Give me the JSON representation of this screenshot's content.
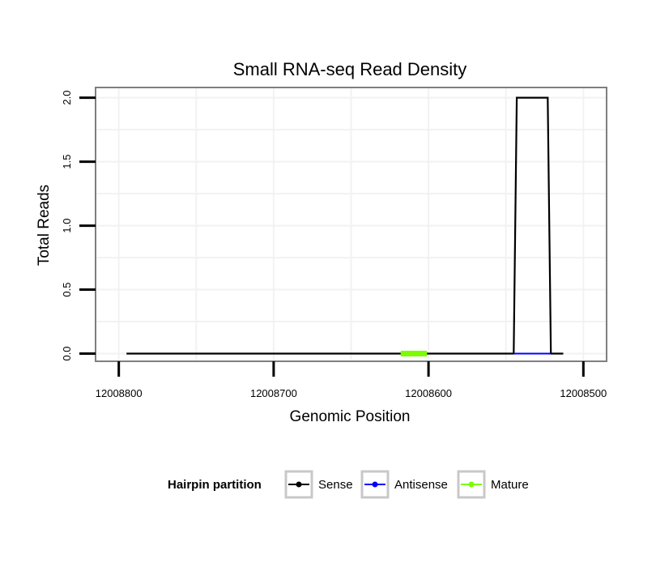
{
  "chart_data": {
    "type": "line",
    "title": "Small RNA-seq Read Density",
    "xlabel": "Genomic Position",
    "ylabel": "Total Reads",
    "xlim": [
      12008815,
      12008485
    ],
    "x_reversed": true,
    "ylim": [
      -0.06,
      2.08
    ],
    "x_ticks": [
      12008800,
      12008700,
      12008600,
      12008500
    ],
    "x_tick_labels": [
      "12008800",
      "12008700",
      "12008600",
      "12008500"
    ],
    "y_ticks": [
      0.0,
      0.5,
      1.0,
      1.5,
      2.0
    ],
    "y_tick_labels": [
      "0.0",
      "0.5",
      "1.0",
      "1.5",
      "2.0"
    ],
    "grid": true,
    "legend": {
      "title": "Hairpin partition",
      "position": "bottom",
      "entries": [
        "Sense",
        "Antisense",
        "Mature"
      ]
    },
    "series": [
      {
        "name": "Sense",
        "color": "#000000",
        "x": [
          12008795,
          12008545,
          12008543,
          12008523,
          12008521,
          12008513
        ],
        "y": [
          0,
          0,
          2,
          2,
          0,
          0
        ]
      },
      {
        "name": "Antisense",
        "color": "#0000ff",
        "x": [
          12008545,
          12008521
        ],
        "y": [
          0,
          0
        ]
      },
      {
        "name": "Mature",
        "color": "#7cfc00",
        "x": [
          12008618,
          12008601
        ],
        "y": [
          0,
          0
        ]
      }
    ]
  }
}
